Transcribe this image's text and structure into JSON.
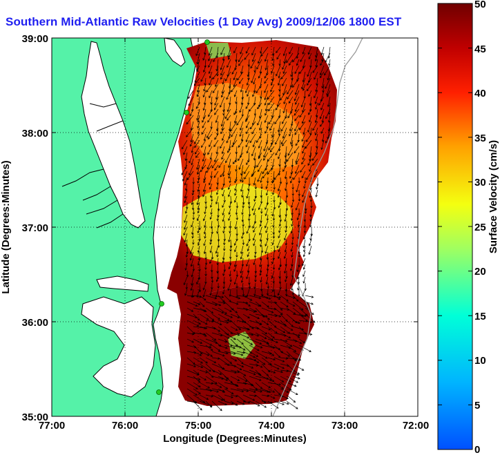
{
  "title": "Southern Mid-Atlantic Raw Velocities (1 Day Avg) 2009/12/06 1800 EST",
  "map": {
    "xlabel": "Longitude (Degrees:Minutes)",
    "ylabel": "Latitude (Degrees:Minutes)",
    "x_ticks": [
      "77:00",
      "76:00",
      "75:00",
      "74:00",
      "73:00",
      "72:00"
    ],
    "y_ticks": [
      "39:00",
      "38:00",
      "37:00",
      "36:00",
      "35:00"
    ],
    "lon_range": [
      -77,
      -72
    ],
    "lat_range": [
      35,
      39
    ],
    "grid": "dotted",
    "colors": {
      "land": "#55f2a8",
      "ocean": "#ffffff",
      "coast": "#000000",
      "arrows": "#000000",
      "radar_sites": "#22cc22"
    }
  },
  "colorbar": {
    "label": "Surface Velocity (cm/s)",
    "ticks": [
      "0",
      "5",
      "10",
      "15",
      "20",
      "25",
      "30",
      "35",
      "40",
      "45",
      "50"
    ],
    "range": [
      0,
      50
    ],
    "colormap": "jet"
  }
}
